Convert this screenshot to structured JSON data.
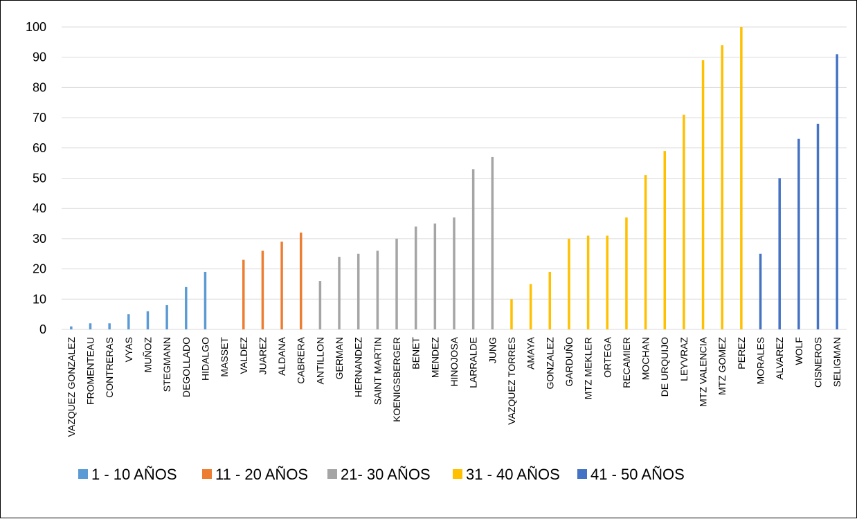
{
  "chart_data": {
    "type": "bar",
    "title": "",
    "xlabel": "",
    "ylabel": "",
    "ylim": [
      0,
      100
    ],
    "yticks": [
      0,
      10,
      20,
      30,
      40,
      50,
      60,
      70,
      80,
      90,
      100
    ],
    "grid": true,
    "legend_position": "bottom",
    "groups": [
      {
        "name": "1 - 10 AÑOS",
        "color": "#5B9BD5"
      },
      {
        "name": "11 - 20 AÑOS",
        "color": "#ED7D31"
      },
      {
        "name": "21- 30 AÑOS",
        "color": "#A5A5A5"
      },
      {
        "name": "31 - 40 AÑOS",
        "color": "#FFC000"
      },
      {
        "name": "41 - 50 AÑOS",
        "color": "#4472C4"
      }
    ],
    "bars": [
      {
        "category": "VAZQUEZ GONZALEZ",
        "value": 1,
        "group": 0
      },
      {
        "category": "FROMENTEAU",
        "value": 2,
        "group": 0
      },
      {
        "category": "CONTRERAS",
        "value": 2,
        "group": 0
      },
      {
        "category": "VYAS",
        "value": 5,
        "group": 0
      },
      {
        "category": "MUÑOZ",
        "value": 6,
        "group": 0
      },
      {
        "category": "STEGMANN",
        "value": 8,
        "group": 0
      },
      {
        "category": "DEGOLLADO",
        "value": 14,
        "group": 0
      },
      {
        "category": "HIDALGO",
        "value": 19,
        "group": 0
      },
      {
        "category": "MASSET",
        "value": 0,
        "group": 0
      },
      {
        "category": "VALDEZ",
        "value": 23,
        "group": 1
      },
      {
        "category": "JUAREZ",
        "value": 26,
        "group": 1
      },
      {
        "category": "ALDANA",
        "value": 29,
        "group": 1
      },
      {
        "category": "CABRERA",
        "value": 32,
        "group": 1
      },
      {
        "category": "ANTILLON",
        "value": 16,
        "group": 2
      },
      {
        "category": "GERMAN",
        "value": 24,
        "group": 2
      },
      {
        "category": "HERNANDEZ",
        "value": 25,
        "group": 2
      },
      {
        "category": "SAINT MARTIN",
        "value": 26,
        "group": 2
      },
      {
        "category": "KOENIGSBERGER",
        "value": 30,
        "group": 2
      },
      {
        "category": "BENET",
        "value": 34,
        "group": 2
      },
      {
        "category": "MENDEZ",
        "value": 35,
        "group": 2
      },
      {
        "category": "HINOJOSA",
        "value": 37,
        "group": 2
      },
      {
        "category": "LARRALDE",
        "value": 53,
        "group": 2
      },
      {
        "category": "JUNG",
        "value": 57,
        "group": 2
      },
      {
        "category": "VAZQUEZ TORRES",
        "value": 10,
        "group": 3
      },
      {
        "category": "AMAYA",
        "value": 15,
        "group": 3
      },
      {
        "category": "GONZALEZ",
        "value": 19,
        "group": 3
      },
      {
        "category": "GARDUÑO",
        "value": 30,
        "group": 3
      },
      {
        "category": "MTZ MEKLER",
        "value": 31,
        "group": 3
      },
      {
        "category": "ORTEGA",
        "value": 31,
        "group": 3
      },
      {
        "category": "RECAMIER",
        "value": 37,
        "group": 3
      },
      {
        "category": "MOCHAN",
        "value": 51,
        "group": 3
      },
      {
        "category": "DE URQUIJO",
        "value": 59,
        "group": 3
      },
      {
        "category": "LEYVRAZ",
        "value": 71,
        "group": 3
      },
      {
        "category": "MTZ VALENCIA",
        "value": 89,
        "group": 3
      },
      {
        "category": "MTZ GOMEZ",
        "value": 94,
        "group": 3
      },
      {
        "category": "PEREZ",
        "value": 100,
        "group": 3
      },
      {
        "category": "MORALES",
        "value": 25,
        "group": 4
      },
      {
        "category": "ALVAREZ",
        "value": 50,
        "group": 4
      },
      {
        "category": "WOLF",
        "value": 63,
        "group": 4
      },
      {
        "category": "CISNEROS",
        "value": 68,
        "group": 4
      },
      {
        "category": "SELIGMAN",
        "value": 91,
        "group": 4
      }
    ]
  }
}
